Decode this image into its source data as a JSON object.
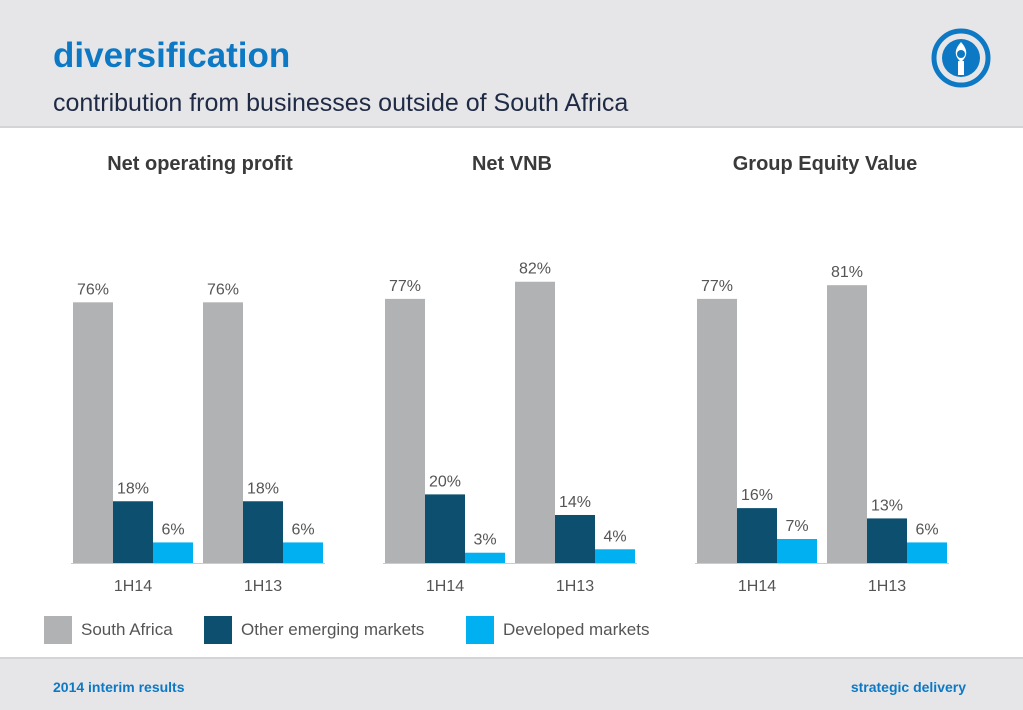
{
  "header": {
    "title": "diversification",
    "subtitle": "contribution from businesses outside of South Africa",
    "logo_icon": "company-logo-icon"
  },
  "colors": {
    "accent": "#0d79c4",
    "south_africa": "#b1b2b4",
    "other_emerging": "#0c4f6e",
    "developed": "#00b0f0"
  },
  "legend": [
    {
      "label": "South Africa",
      "color": "#b1b2b4"
    },
    {
      "label": "Other emerging markets",
      "color": "#0c4f6e"
    },
    {
      "label": "Developed markets",
      "color": "#00b0f0"
    }
  ],
  "chart_data": [
    {
      "type": "bar",
      "title": "Net operating profit",
      "categories": [
        "1H14",
        "1H13"
      ],
      "series": [
        {
          "name": "South Africa",
          "values": [
            76,
            76
          ],
          "labels": [
            "76%",
            "76%"
          ]
        },
        {
          "name": "Other emerging markets",
          "values": [
            18,
            18
          ],
          "labels": [
            "18%",
            "18%"
          ]
        },
        {
          "name": "Developed markets",
          "values": [
            6,
            6
          ],
          "labels": [
            "6%",
            "6%"
          ]
        }
      ],
      "ylim": [
        0,
        100
      ],
      "grid": false,
      "legend": "bottom"
    },
    {
      "type": "bar",
      "title": "Net VNB",
      "categories": [
        "1H14",
        "1H13"
      ],
      "series": [
        {
          "name": "South Africa",
          "values": [
            77,
            82
          ],
          "labels": [
            "77%",
            "82%"
          ]
        },
        {
          "name": "Other emerging markets",
          "values": [
            20,
            14
          ],
          "labels": [
            "20%",
            "14%"
          ]
        },
        {
          "name": "Developed markets",
          "values": [
            3,
            4
          ],
          "labels": [
            "3%",
            "4%"
          ]
        }
      ],
      "ylim": [
        0,
        100
      ],
      "grid": false,
      "legend": "bottom"
    },
    {
      "type": "bar",
      "title": "Group Equity Value",
      "categories": [
        "1H14",
        "1H13"
      ],
      "series": [
        {
          "name": "South Africa",
          "values": [
            77,
            81
          ],
          "labels": [
            "77%",
            "81%"
          ]
        },
        {
          "name": "Other emerging markets",
          "values": [
            16,
            13
          ],
          "labels": [
            "16%",
            "13%"
          ]
        },
        {
          "name": "Developed markets",
          "values": [
            7,
            6
          ],
          "labels": [
            "7%",
            "6%"
          ]
        }
      ],
      "ylim": [
        0,
        100
      ],
      "grid": false,
      "legend": "bottom"
    }
  ],
  "footer": {
    "left": "2014 interim results",
    "right": "strategic delivery"
  }
}
